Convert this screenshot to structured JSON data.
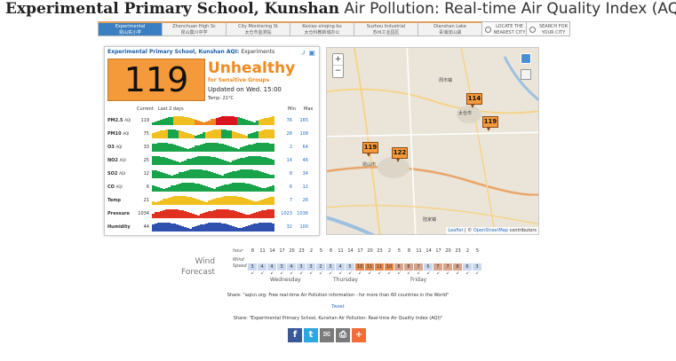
{
  "title": {
    "bold": "Experimental Primary School, Kunshan",
    "rest": " Air Pollution: Real-time Air Quality Index (AQI)"
  },
  "nav": {
    "tabs": [
      {
        "l1": "Experimental",
        "l2": "昆山实小学",
        "active": true
      },
      {
        "l1": "Zhenchuan High Sc",
        "l2": "昆山震川中学",
        "active": false
      },
      {
        "l1": "City Monitoring St",
        "l2": "太仓市监测站",
        "active": false
      },
      {
        "l1": "Kexiao xinqing bu",
        "l2": "太仓科教新城办公",
        "active": false
      },
      {
        "l1": "Suzhou Industrial",
        "l2": "苏州工业园区",
        "active": false
      },
      {
        "l1": "Dianshan Lake",
        "l2": "青浦淀山湖",
        "active": false
      }
    ],
    "locate": {
      "l1": "LOCATE THE",
      "l2": "NEAREST CITY"
    },
    "search": {
      "l1": "SEARCH FOR",
      "l2": "YOUR CITY"
    }
  },
  "card": {
    "title": "Experimental Primary School, Kunshan AQI:",
    "title_suffix": "Experiments",
    "aqi": "119",
    "status": "Unhealthy",
    "sub": "for Sensitive Groups",
    "updated": "Updated on Wed. 15:00",
    "temp": "Temp: 21°C",
    "head": {
      "current": "Current",
      "last": "Last 2 days",
      "min": "Min",
      "max": "Max"
    },
    "rows": [
      {
        "name": "PM2.5",
        "unit": "AQI",
        "cur": "119",
        "min": "76",
        "max": "165",
        "color": "#d8151e"
      },
      {
        "name": "PM10",
        "unit": "AQI",
        "cur": "75",
        "min": "28",
        "max": "108",
        "color": "#f0c020"
      },
      {
        "name": "O3",
        "unit": "AQI",
        "cur": "33",
        "min": "2",
        "max": "64",
        "color": "#19a34a"
      },
      {
        "name": "NO2",
        "unit": "AQI",
        "cur": "25",
        "min": "14",
        "max": "46",
        "color": "#19a34a"
      },
      {
        "name": "SO2",
        "unit": "AQI",
        "cur": "12",
        "min": "8",
        "max": "34",
        "color": "#19a34a"
      },
      {
        "name": "CO",
        "unit": "AQI",
        "cur": "6",
        "min": "6",
        "max": "12",
        "color": "#19a34a"
      },
      {
        "name": "Temp",
        "unit": "",
        "cur": "21",
        "min": "7",
        "max": "26",
        "color": "#f0c020"
      },
      {
        "name": "Pressure",
        "unit": "",
        "cur": "1034",
        "min": "1023",
        "max": "1036",
        "color": "#e03020"
      },
      {
        "name": "Humidity",
        "unit": "",
        "cur": "44",
        "min": "32",
        "max": "100",
        "color": "#3050b0"
      }
    ]
  },
  "map": {
    "markers": [
      "114",
      "119",
      "119",
      "122"
    ],
    "cities": [
      "太仓市",
      "昆山市",
      "周市镇",
      "陆家镇"
    ],
    "attrib_link1": "Leaflet",
    "attrib_sep": " | © ",
    "attrib_link2": "OpenStreetMap",
    "attrib_tail": " contributors"
  },
  "wind": {
    "label1": "Wind",
    "label2": "Forecast",
    "hour_label": "hour",
    "speed_label1": "Wind",
    "speed_label2": "Speed",
    "hours": [
      "8",
      "11",
      "14",
      "17",
      "20",
      "23",
      "2",
      "5",
      "8",
      "11",
      "14",
      "17",
      "20",
      "23",
      "2",
      "5",
      "8",
      "11",
      "14",
      "17",
      "20",
      "23",
      "2",
      "5"
    ],
    "speeds": [
      "3",
      "4",
      "4",
      "3",
      "4",
      "3",
      "3",
      "2",
      "3",
      "4",
      "5",
      "10",
      "11",
      "11",
      "10",
      "8",
      "8",
      "7",
      "6",
      "7",
      "7",
      "8",
      "6",
      "3"
    ],
    "days": [
      "Wednesday",
      "Thursday",
      "Friday"
    ]
  },
  "share": {
    "line1": "Share: \"aqicn.org: Free real-time Air Pollution information - for more than 60 countries in the World\"",
    "tweet": "Tweet",
    "line2": "Share: \"Experimental Primary School, Kunshan Air Pollution: Real-time Air Quality Index (AQI)\""
  },
  "social": [
    {
      "icon": "facebook-icon",
      "glyph": "f",
      "color": "#3b5998"
    },
    {
      "icon": "twitter-icon",
      "glyph": "t",
      "color": "#2da7e0"
    },
    {
      "icon": "email-icon",
      "glyph": "✉",
      "color": "#7a7a7a"
    },
    {
      "icon": "print-icon",
      "glyph": "⎙",
      "color": "#7a7a7a"
    },
    {
      "icon": "addthis-icon",
      "glyph": "+",
      "color": "#f26b3a"
    }
  ]
}
